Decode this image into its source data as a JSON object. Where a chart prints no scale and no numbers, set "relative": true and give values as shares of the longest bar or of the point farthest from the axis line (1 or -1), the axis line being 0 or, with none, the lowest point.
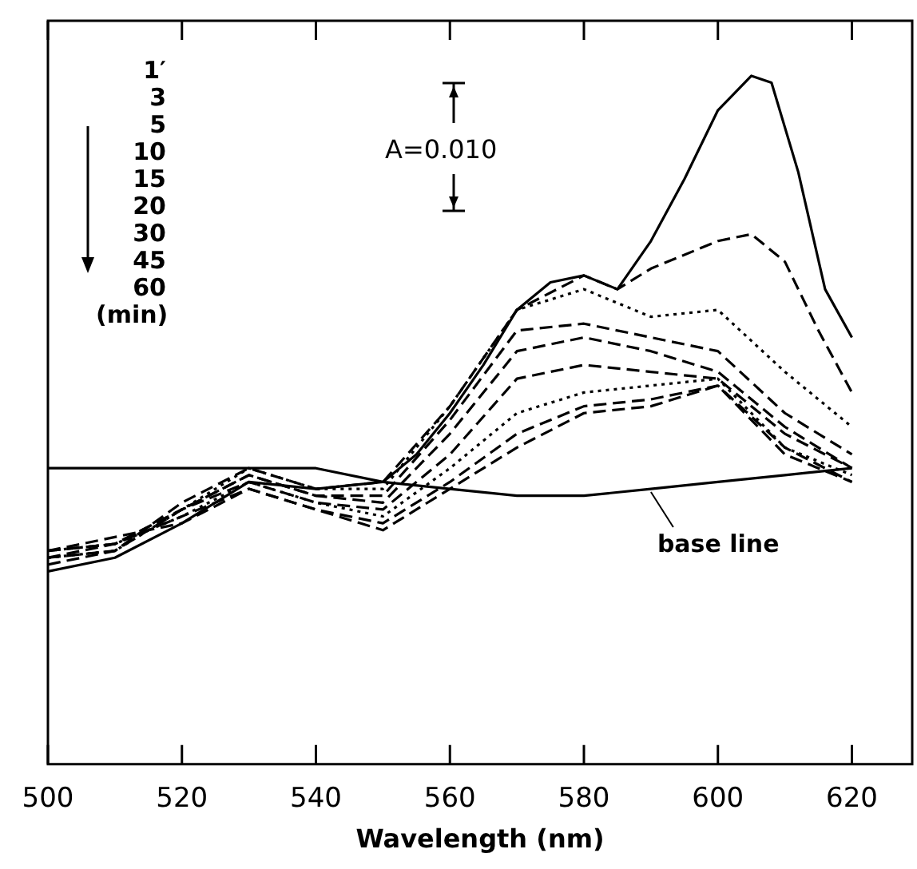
{
  "chart_data": {
    "type": "line",
    "xlabel": "Wavelength (nm)",
    "relative": true,
    "xlim": [
      500,
      629
    ],
    "xticks": [
      500,
      520,
      540,
      560,
      580,
      600,
      620
    ],
    "marker": "none",
    "x": [
      500,
      510,
      520,
      530,
      540,
      550,
      560,
      570,
      580,
      590,
      600,
      610,
      620
    ],
    "series": [
      {
        "color": "#000000",
        "line_style": "solid",
        "x": [
          500,
          510,
          520,
          530,
          540,
          550,
          555,
          560,
          565,
          570,
          575,
          580,
          585,
          590,
          595,
          600,
          605,
          608,
          612,
          616,
          620
        ],
        "values": [
          0.28,
          0.3,
          0.35,
          0.41,
          0.4,
          0.41,
          0.45,
          0.51,
          0.58,
          0.66,
          0.7,
          0.71,
          0.69,
          0.76,
          0.85,
          0.95,
          1.0,
          0.99,
          0.86,
          0.69,
          0.62
        ]
      },
      {
        "color": "#000000",
        "line_style": "dashed",
        "x": [
          500,
          510,
          520,
          530,
          540,
          550,
          560,
          570,
          580,
          585,
          590,
          600,
          605,
          610,
          615,
          620
        ],
        "values": [
          0.29,
          0.31,
          0.38,
          0.43,
          0.4,
          0.41,
          0.52,
          0.66,
          0.71,
          0.69,
          0.72,
          0.76,
          0.77,
          0.73,
          0.63,
          0.54
        ]
      },
      {
        "color": "#000000",
        "line_style": "dotted",
        "values": [
          0.3,
          0.31,
          0.37,
          0.43,
          0.4,
          0.4,
          0.52,
          0.66,
          0.69,
          0.65,
          0.66,
          0.57,
          0.49
        ]
      },
      {
        "color": "#000000",
        "line_style": "dashed",
        "values": [
          0.3,
          0.31,
          0.37,
          0.42,
          0.39,
          0.39,
          0.5,
          0.63,
          0.64,
          0.62,
          0.6,
          0.51,
          0.45
        ]
      },
      {
        "color": "#000000",
        "line_style": "dashed",
        "values": [
          0.3,
          0.32,
          0.37,
          0.42,
          0.39,
          0.38,
          0.48,
          0.6,
          0.62,
          0.6,
          0.57,
          0.49,
          0.43
        ]
      },
      {
        "color": "#000000",
        "line_style": "dashed",
        "values": [
          0.31,
          0.32,
          0.37,
          0.41,
          0.38,
          0.37,
          0.45,
          0.56,
          0.58,
          0.57,
          0.56,
          0.48,
          0.43
        ]
      },
      {
        "color": "#000000",
        "line_style": "dotted",
        "values": [
          0.31,
          0.32,
          0.36,
          0.41,
          0.38,
          0.36,
          0.43,
          0.51,
          0.54,
          0.55,
          0.56,
          0.46,
          0.42
        ]
      },
      {
        "color": "#000000",
        "line_style": "dashed",
        "values": [
          0.31,
          0.32,
          0.36,
          0.4,
          0.37,
          0.35,
          0.41,
          0.48,
          0.52,
          0.53,
          0.55,
          0.46,
          0.41
        ]
      },
      {
        "color": "#000000",
        "line_style": "dashed",
        "values": [
          0.31,
          0.33,
          0.35,
          0.4,
          0.37,
          0.34,
          0.4,
          0.46,
          0.51,
          0.52,
          0.55,
          0.45,
          0.41
        ]
      },
      {
        "name": "base line",
        "color": "#000000",
        "line_style": "solid",
        "values": [
          0.43,
          0.43,
          0.43,
          0.43,
          0.43,
          0.41,
          0.4,
          0.39,
          0.39,
          0.4,
          0.41,
          0.42,
          0.43
        ]
      }
    ],
    "annotations": [
      "1′",
      "3",
      "5",
      "10",
      "15",
      "20",
      "30",
      "45",
      "60",
      "(min)",
      "A=0.010"
    ]
  }
}
